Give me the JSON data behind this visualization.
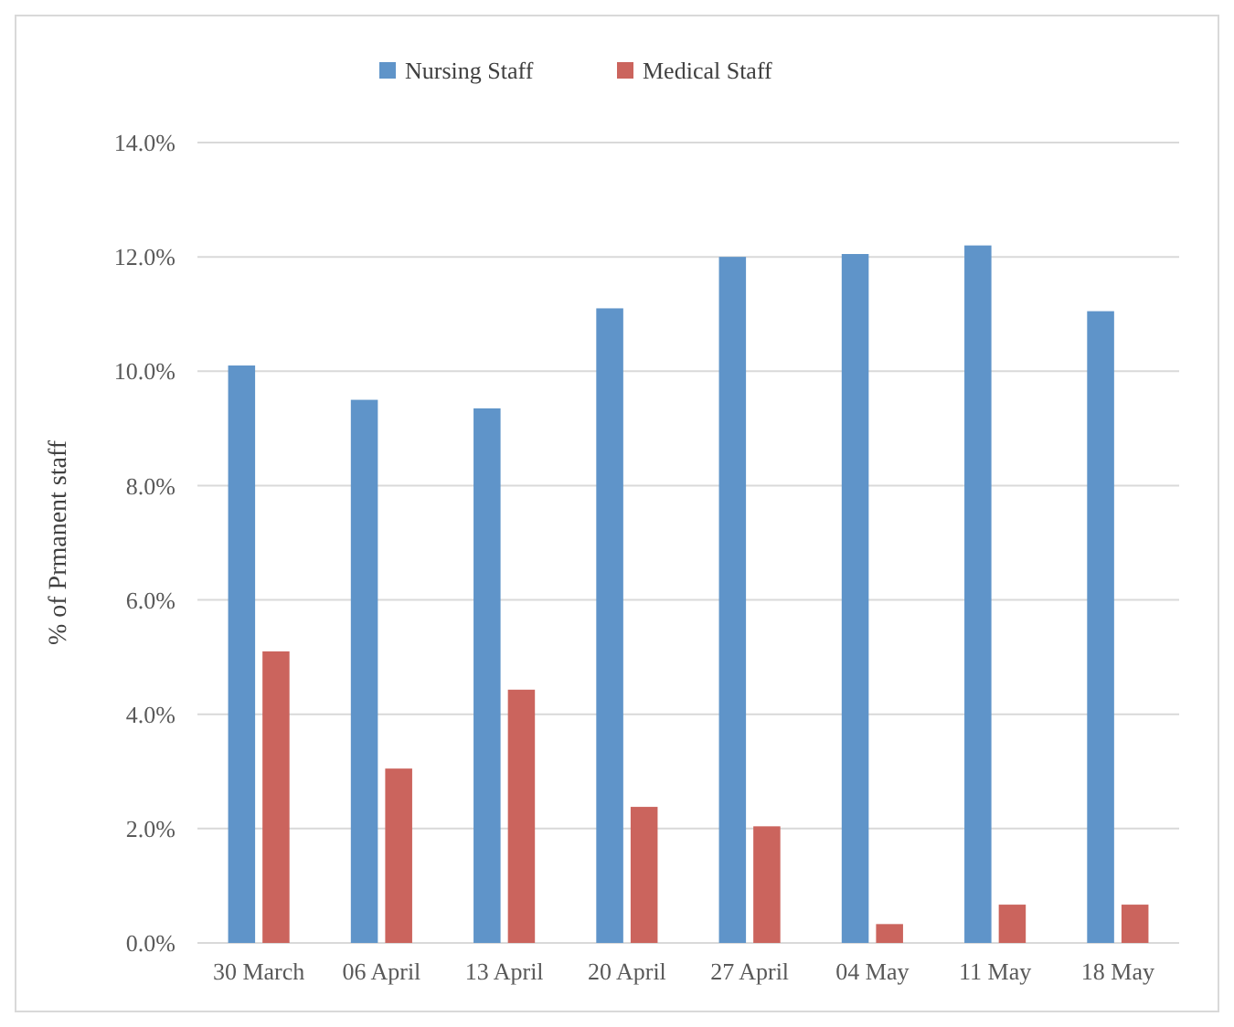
{
  "chart_data": {
    "type": "bar",
    "ylabel": "% of Prmanent staff",
    "categories": [
      "30 March",
      "06 April",
      "13 April",
      "20 April",
      "27 April",
      "04 May",
      "11 May",
      "18 May"
    ],
    "series": [
      {
        "name": "Nursing Staff",
        "color": "#5f94c9",
        "values": [
          10.1,
          9.5,
          9.35,
          11.1,
          12.0,
          12.05,
          12.2,
          11.05
        ]
      },
      {
        "name": "Medical Staff",
        "color": "#cb645d",
        "values": [
          5.1,
          3.05,
          4.43,
          2.38,
          2.04,
          0.33,
          0.67,
          0.67
        ]
      }
    ],
    "ylim": [
      0,
      14
    ],
    "yticks": [
      {
        "value": 0,
        "label": "0.0%"
      },
      {
        "value": 2,
        "label": "2.0%"
      },
      {
        "value": 4,
        "label": "4.0%"
      },
      {
        "value": 6,
        "label": "6.0%"
      },
      {
        "value": 8,
        "label": "8.0%"
      },
      {
        "value": 10,
        "label": "10.0%"
      },
      {
        "value": 12,
        "label": "12.0%"
      },
      {
        "value": 14,
        "label": "14.0%"
      }
    ],
    "grid": "y",
    "legend": "top"
  }
}
